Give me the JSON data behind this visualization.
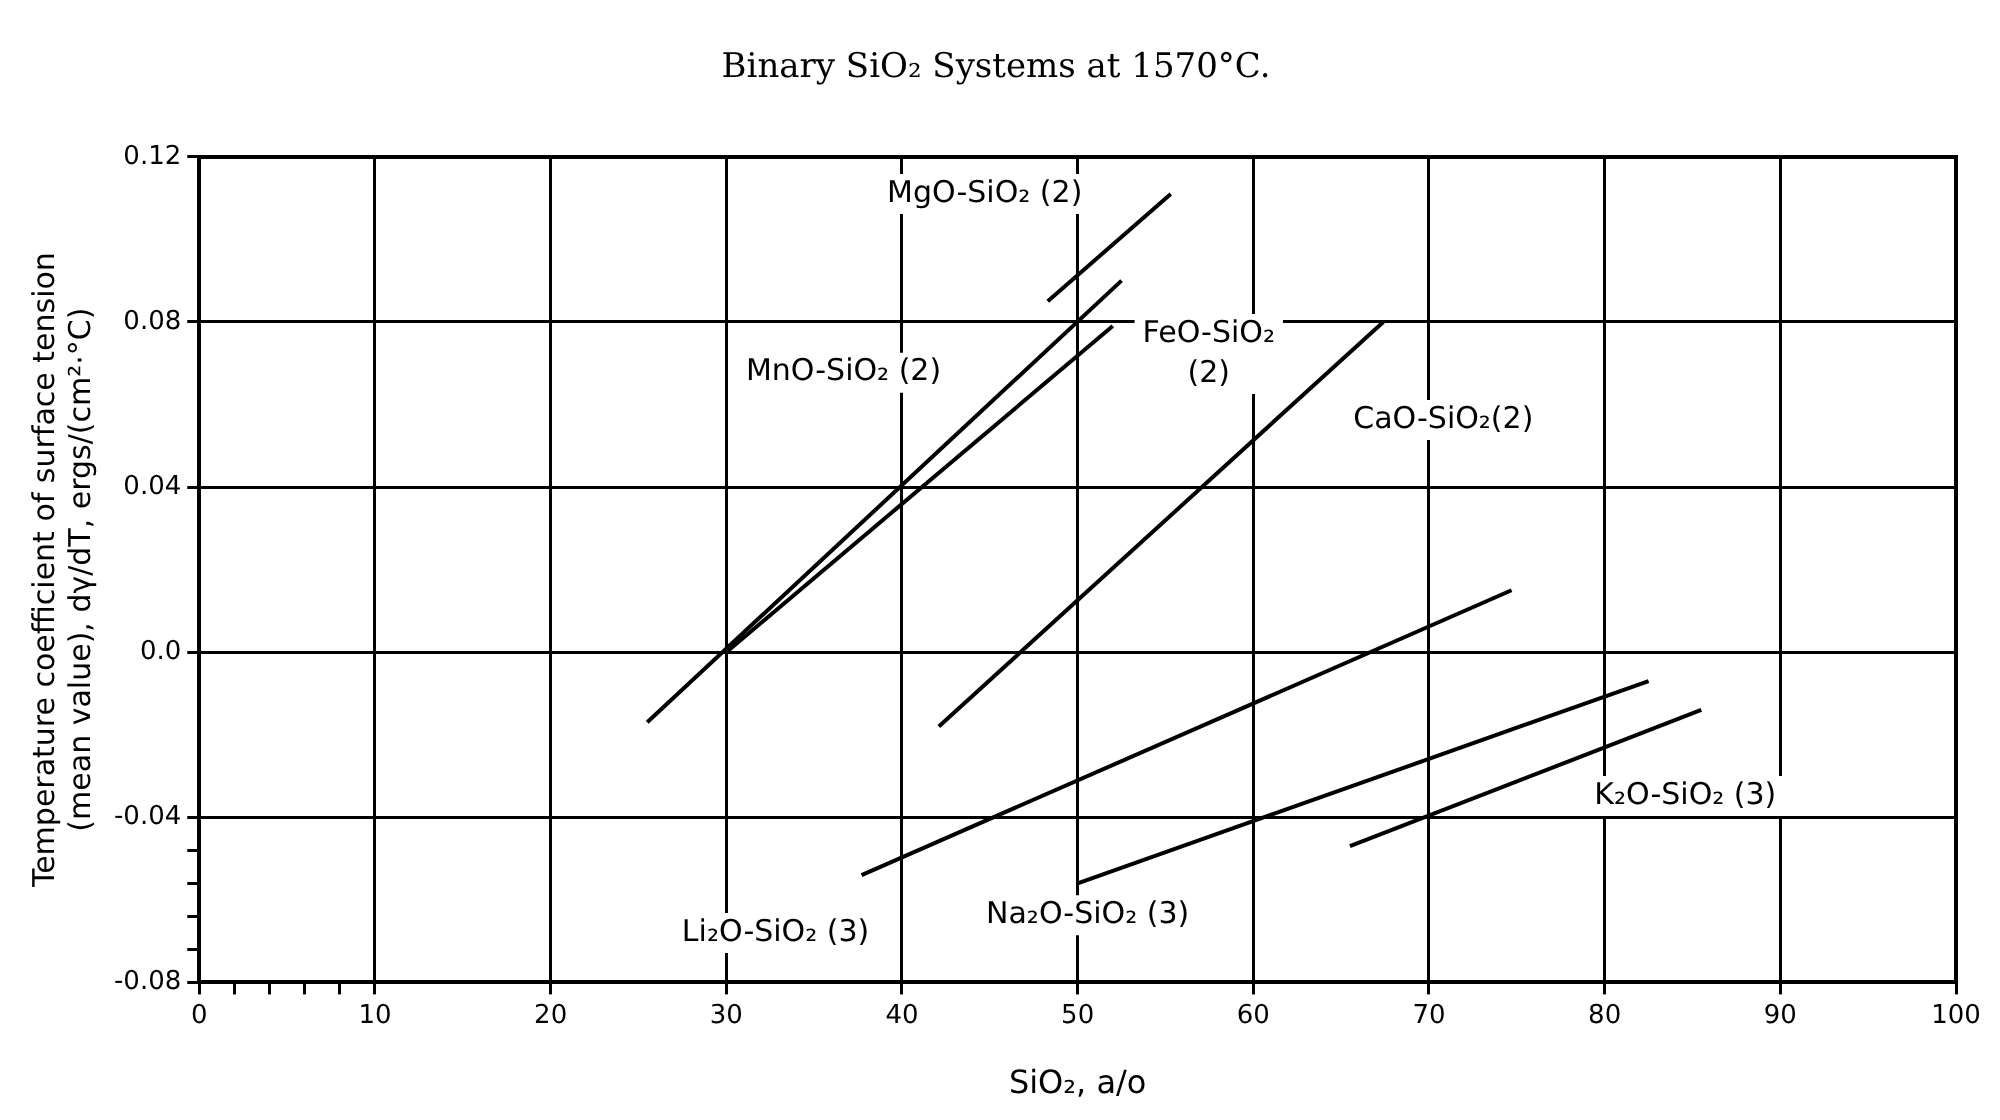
{
  "chart_data": {
    "type": "line",
    "title": "Binary SiO₂ Systems at 1570°C.",
    "xlabel": "SiO₂, a/o",
    "ylabel": "Temperature coefficient of surface tension\n(mean value), dγ/dT, ergs/(cm²·°C)",
    "xlim": [
      0,
      100
    ],
    "xticks": [
      0,
      {
        "value": 2,
        "label": null
      },
      {
        "value": 4,
        "label": null
      },
      {
        "value": 6,
        "label": null
      },
      {
        "value": 8,
        "label": null
      },
      10,
      20,
      30,
      40,
      50,
      60,
      70,
      80,
      90,
      100
    ],
    "ylim": [
      -0.08,
      0.12
    ],
    "yticks": [
      -0.08,
      {
        "value": -0.072,
        "label": null
      },
      {
        "value": -0.064,
        "label": null
      },
      {
        "value": -0.056,
        "label": null
      },
      {
        "value": -0.048,
        "label": null
      },
      -0.04,
      {
        "value": 0,
        "label": "0.0"
      },
      0.04,
      0.08,
      0.12
    ],
    "grid": true,
    "legend": false,
    "marker": "none",
    "line_style": "solid",
    "series": [
      {
        "name": "MgO-SiO₂ (2)",
        "color": "#000000",
        "x": [
          48.3,
          55.3
        ],
        "values": [
          0.085,
          0.111
        ]
      },
      {
        "name": "MnO-SiO₂ (2)",
        "color": "#000000",
        "x": [
          25.5,
          52.5
        ],
        "values": [
          -0.017,
          0.09
        ]
      },
      {
        "name": "FeO-SiO₂\n(2)",
        "color": "#000000",
        "x": [
          30,
          52
        ],
        "values": [
          0.0,
          0.079
        ]
      },
      {
        "name": "CaO-SiO₂(2)",
        "color": "#000000",
        "x": [
          42.1,
          67.4
        ],
        "values": [
          -0.018,
          0.08
        ]
      },
      {
        "name": "Li₂O-SiO₂ (3)",
        "color": "#000000",
        "x": [
          37.7,
          74.7
        ],
        "values": [
          -0.054,
          0.015
        ]
      },
      {
        "name": "Na₂O-SiO₂ (3)",
        "color": "#000000",
        "x": [
          50,
          82.5
        ],
        "values": [
          -0.056,
          -0.007
        ]
      },
      {
        "name": "K₂O-SiO₂ (3)",
        "color": "#000000",
        "x": [
          65.5,
          85.5
        ],
        "values": [
          -0.047,
          -0.014
        ]
      }
    ]
  }
}
